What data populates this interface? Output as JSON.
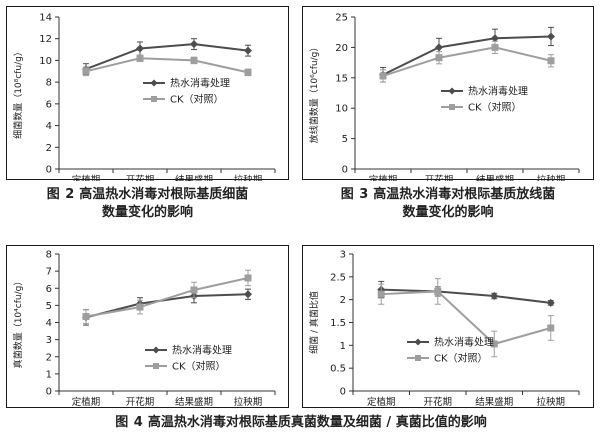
{
  "colors": {
    "heat": "#4d4d4d",
    "ck": "#9e9e9e",
    "axis": "#333333"
  },
  "captions": {
    "fig2": {
      "num": "图 2",
      "line1": "高温热水消毒对根际基质细菌",
      "line2": "数量变化的影响"
    },
    "fig3": {
      "num": "图 3",
      "line1": "高温热水消毒对根际基质放线菌",
      "line2": "数量变化的影响"
    },
    "fig4": {
      "num": "图 4",
      "line1": "高温热水消毒对根际基质真菌数量及细菌 / 真菌比值的影响"
    }
  },
  "chart_data": [
    {
      "id": "chart1",
      "type": "line",
      "categories": [
        "定植期",
        "开花期",
        "结果盛期",
        "拉秧期"
      ],
      "ylabel": "细菌数量（10⁸cfu/g）",
      "ylim": [
        0,
        14
      ],
      "yticks": [
        0,
        2,
        4,
        6,
        8,
        10,
        12,
        14
      ],
      "legend_position": "center",
      "series": [
        {
          "name": "热水消毒处理",
          "values": [
            9.2,
            11.1,
            11.5,
            10.9
          ],
          "errors": [
            0.5,
            0.6,
            0.5,
            0.5
          ],
          "marker": "diamond",
          "color": "#4d4d4d"
        },
        {
          "name": "CK（对照）",
          "values": [
            9.0,
            10.2,
            10.0,
            8.9
          ],
          "errors": [
            0.4,
            0.3,
            0.3,
            0.3
          ],
          "marker": "square",
          "color": "#9e9e9e"
        }
      ]
    },
    {
      "id": "chart2",
      "type": "line",
      "categories": [
        "定植期",
        "开花期",
        "结果盛期",
        "拉秧期"
      ],
      "ylabel": "放线菌数量（10⁶cfu/g）",
      "ylim": [
        0,
        25
      ],
      "yticks": [
        0,
        5,
        10,
        15,
        20,
        25
      ],
      "legend_position": "center-right",
      "series": [
        {
          "name": "热水消毒处理",
          "values": [
            15.5,
            20.0,
            21.5,
            21.8
          ],
          "errors": [
            1.2,
            1.5,
            1.5,
            1.5
          ],
          "marker": "diamond",
          "color": "#4d4d4d"
        },
        {
          "name": "CK（对照）",
          "values": [
            15.3,
            18.3,
            20.0,
            17.8
          ],
          "errors": [
            1.0,
            1.0,
            1.0,
            1.0
          ],
          "marker": "square",
          "color": "#9e9e9e"
        }
      ]
    },
    {
      "id": "chart3",
      "type": "line",
      "categories": [
        "定植期",
        "开花期",
        "结果盛期",
        "拉秧期"
      ],
      "ylabel": "真菌数量（10⁴cfu/g）",
      "ylim": [
        0,
        8
      ],
      "yticks": [
        0,
        1,
        2,
        3,
        4,
        5,
        6,
        7,
        8
      ],
      "legend_position": "bottom-right",
      "series": [
        {
          "name": "热水消毒处理",
          "values": [
            4.3,
            5.1,
            5.55,
            5.65
          ],
          "errors": [
            0.45,
            0.35,
            0.4,
            0.3
          ],
          "marker": "diamond",
          "color": "#4d4d4d"
        },
        {
          "name": "CK（对照）",
          "values": [
            4.35,
            4.9,
            5.9,
            6.6
          ],
          "errors": [
            0.4,
            0.4,
            0.45,
            0.45
          ],
          "marker": "square",
          "color": "#9e9e9e"
        }
      ]
    },
    {
      "id": "chart4",
      "type": "line",
      "categories": [
        "定植期",
        "开花期",
        "结果盛期",
        "拉秧期"
      ],
      "ylabel": "细菌 / 真菌比值",
      "ylim": [
        0,
        3
      ],
      "yticks": [
        0,
        0.5,
        1,
        1.5,
        2,
        2.5,
        3
      ],
      "legend_position": "bottom-left",
      "series": [
        {
          "name": "热水消毒处理",
          "values": [
            2.22,
            2.18,
            2.08,
            1.93
          ],
          "errors": [
            0.18,
            0.1,
            0.06,
            0.05
          ],
          "marker": "diamond",
          "color": "#4d4d4d"
        },
        {
          "name": "CK（对照）",
          "values": [
            2.12,
            2.18,
            1.03,
            1.38
          ],
          "errors": [
            0.22,
            0.28,
            0.28,
            0.27
          ],
          "marker": "square",
          "color": "#9e9e9e"
        }
      ]
    }
  ]
}
